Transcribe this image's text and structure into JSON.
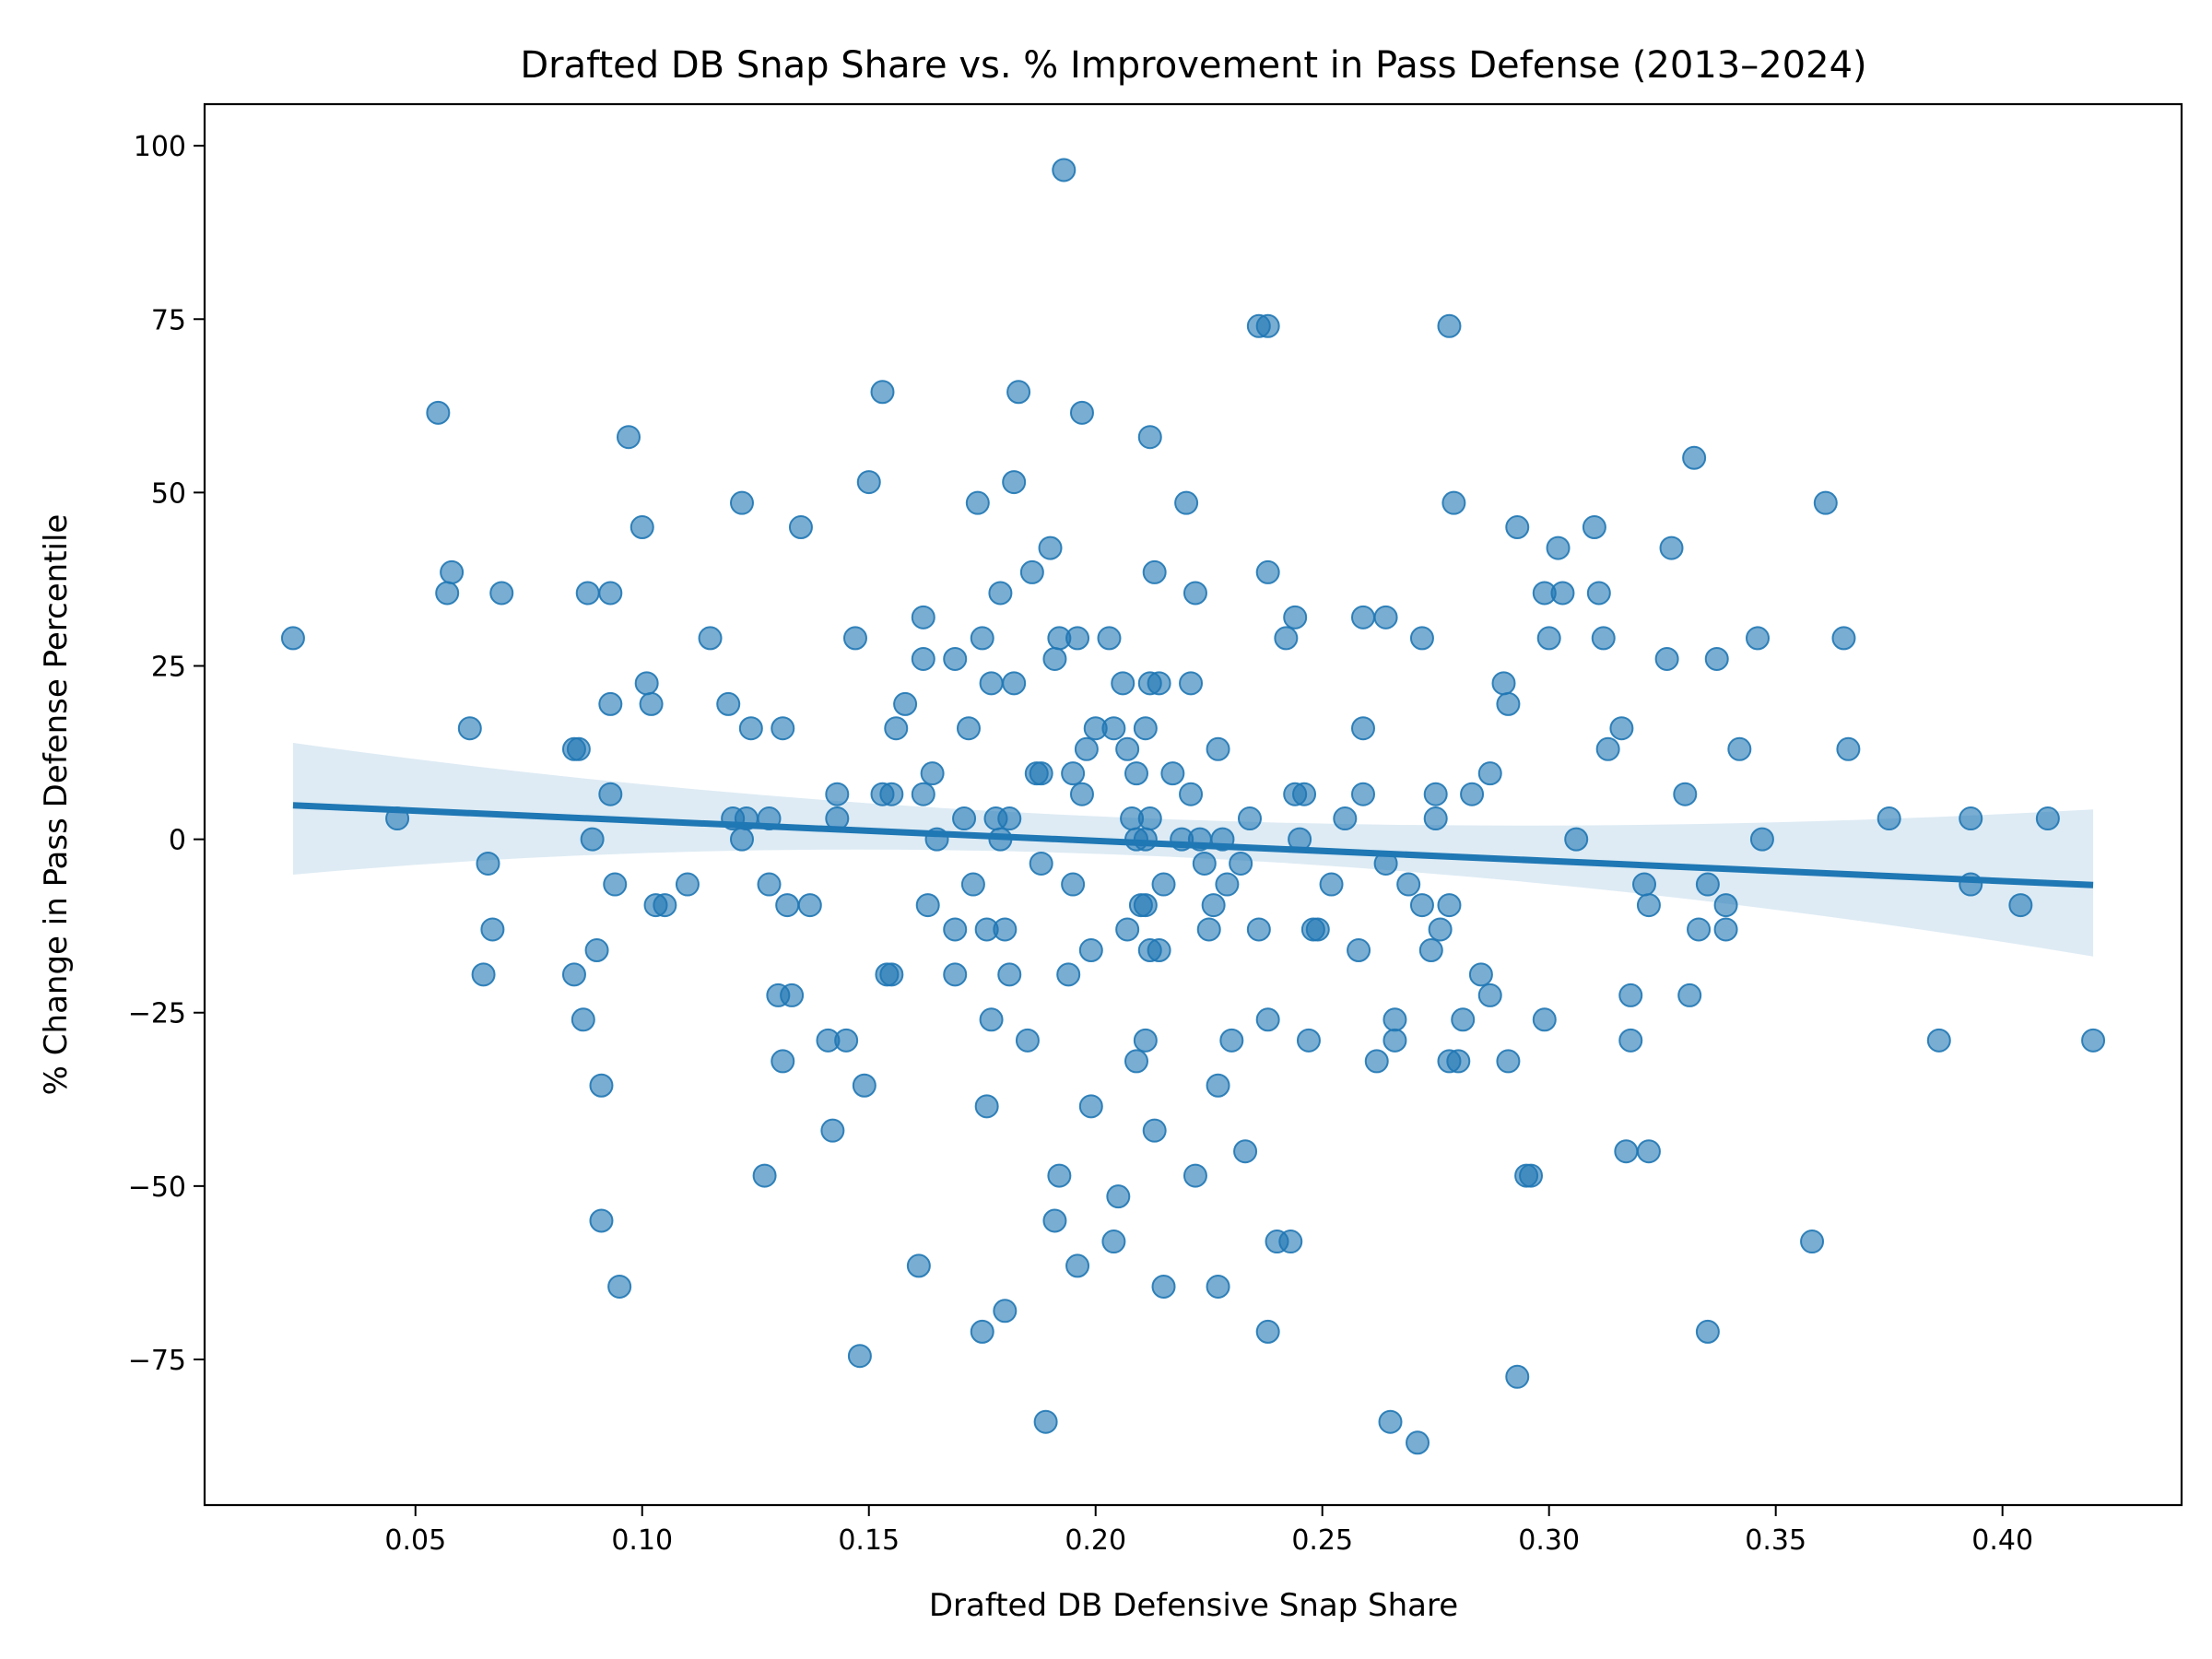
{
  "chart_data": {
    "type": "scatter",
    "title": "Drafted DB Snap Share vs. % Improvement in Pass Defense (2013–2024)",
    "xlabel": "Drafted DB Defensive Snap Share",
    "ylabel": "% Change in Pass Defense Percentile",
    "xlim": [
      0.0035,
      0.4395
    ],
    "ylim": [
      -96,
      106
    ],
    "x_ticks": [
      0.05,
      0.1,
      0.15,
      0.2,
      0.25,
      0.3,
      0.35,
      0.4
    ],
    "x_tick_labels": [
      "0.05",
      "0.10",
      "0.15",
      "0.20",
      "0.25",
      "0.30",
      "0.35",
      "0.40"
    ],
    "y_ticks": [
      100,
      75,
      50,
      25,
      0,
      -25,
      -50,
      -75
    ],
    "y_tick_labels": [
      "100",
      "75",
      "50",
      "25",
      "0",
      "−25",
      "−50",
      "−75"
    ],
    "grid": false,
    "colors": {
      "points": "#1f77b4",
      "line": "#1f77b4",
      "band": "#1f77b4"
    },
    "regression": {
      "x": [
        0.023,
        0.42
      ],
      "y": [
        4.9,
        -6.6
      ],
      "ci_upper": [
        13.9,
        4.3
      ],
      "ci_lower": [
        -5.1,
        -16.9
      ],
      "ci_mid_x": 0.21,
      "ci_mid_upper": 2.9,
      "ci_mid_lower": -2.5
    },
    "points": [
      [
        0.023,
        29
      ],
      [
        0.046,
        3
      ],
      [
        0.055,
        61.5
      ],
      [
        0.057,
        35.5
      ],
      [
        0.058,
        38.5
      ],
      [
        0.062,
        16
      ],
      [
        0.065,
        -19.5
      ],
      [
        0.066,
        -3.5
      ],
      [
        0.067,
        -13
      ],
      [
        0.069,
        35.5
      ],
      [
        0.085,
        13
      ],
      [
        0.085,
        -19.5
      ],
      [
        0.086,
        13
      ],
      [
        0.087,
        -26
      ],
      [
        0.088,
        35.5
      ],
      [
        0.089,
        0
      ],
      [
        0.09,
        -16
      ],
      [
        0.091,
        -35.5
      ],
      [
        0.091,
        -55
      ],
      [
        0.093,
        35.5
      ],
      [
        0.093,
        19.5
      ],
      [
        0.093,
        6.5
      ],
      [
        0.094,
        -6.5
      ],
      [
        0.095,
        -64.5
      ],
      [
        0.097,
        58
      ],
      [
        0.1,
        45
      ],
      [
        0.101,
        22.5
      ],
      [
        0.102,
        19.5
      ],
      [
        0.103,
        -9.5
      ],
      [
        0.105,
        -9.5
      ],
      [
        0.11,
        -6.5
      ],
      [
        0.115,
        29
      ],
      [
        0.119,
        19.5
      ],
      [
        0.12,
        3
      ],
      [
        0.122,
        0
      ],
      [
        0.122,
        48.5
      ],
      [
        0.123,
        3
      ],
      [
        0.124,
        16
      ],
      [
        0.127,
        -48.5
      ],
      [
        0.128,
        3
      ],
      [
        0.128,
        -6.5
      ],
      [
        0.13,
        -22.5
      ],
      [
        0.131,
        -32
      ],
      [
        0.131,
        16
      ],
      [
        0.132,
        -9.5
      ],
      [
        0.133,
        -22.5
      ],
      [
        0.135,
        45
      ],
      [
        0.137,
        -9.5
      ],
      [
        0.141,
        -29
      ],
      [
        0.142,
        -42
      ],
      [
        0.143,
        6.5
      ],
      [
        0.143,
        3
      ],
      [
        0.145,
        -29
      ],
      [
        0.147,
        29
      ],
      [
        0.148,
        -74.5
      ],
      [
        0.149,
        -35.5
      ],
      [
        0.15,
        51.5
      ],
      [
        0.153,
        64.5
      ],
      [
        0.153,
        6.5
      ],
      [
        0.154,
        -19.5
      ],
      [
        0.155,
        6.5
      ],
      [
        0.155,
        -19.5
      ],
      [
        0.156,
        16
      ],
      [
        0.158,
        19.5
      ],
      [
        0.161,
        -61.5
      ],
      [
        0.162,
        32
      ],
      [
        0.162,
        26
      ],
      [
        0.162,
        6.5
      ],
      [
        0.163,
        -9.5
      ],
      [
        0.164,
        9.5
      ],
      [
        0.165,
        0
      ],
      [
        0.169,
        26
      ],
      [
        0.169,
        -13
      ],
      [
        0.169,
        -19.5
      ],
      [
        0.171,
        3
      ],
      [
        0.172,
        16
      ],
      [
        0.173,
        -6.5
      ],
      [
        0.174,
        48.5
      ],
      [
        0.175,
        29
      ],
      [
        0.175,
        -71
      ],
      [
        0.176,
        -38.5
      ],
      [
        0.176,
        -13
      ],
      [
        0.177,
        -26
      ],
      [
        0.177,
        22.5
      ],
      [
        0.178,
        3
      ],
      [
        0.179,
        0
      ],
      [
        0.179,
        35.5
      ],
      [
        0.18,
        -13
      ],
      [
        0.18,
        -68
      ],
      [
        0.181,
        3
      ],
      [
        0.181,
        -19.5
      ],
      [
        0.182,
        51.5
      ],
      [
        0.182,
        22.5
      ],
      [
        0.183,
        64.5
      ],
      [
        0.185,
        -29
      ],
      [
        0.186,
        38.5
      ],
      [
        0.187,
        9.5
      ],
      [
        0.188,
        9.5
      ],
      [
        0.188,
        -3.5
      ],
      [
        0.189,
        -84
      ],
      [
        0.19,
        42
      ],
      [
        0.191,
        26
      ],
      [
        0.191,
        -55
      ],
      [
        0.192,
        29
      ],
      [
        0.192,
        -48.5
      ],
      [
        0.193,
        96.5
      ],
      [
        0.194,
        -19.5
      ],
      [
        0.195,
        -6.5
      ],
      [
        0.195,
        9.5
      ],
      [
        0.196,
        29
      ],
      [
        0.196,
        -61.5
      ],
      [
        0.197,
        6.5
      ],
      [
        0.197,
        61.5
      ],
      [
        0.198,
        13
      ],
      [
        0.199,
        -16
      ],
      [
        0.199,
        -38.5
      ],
      [
        0.2,
        16
      ],
      [
        0.203,
        29
      ],
      [
        0.204,
        16
      ],
      [
        0.204,
        -58
      ],
      [
        0.205,
        -51.5
      ],
      [
        0.206,
        22.5
      ],
      [
        0.207,
        13
      ],
      [
        0.207,
        -13
      ],
      [
        0.208,
        3
      ],
      [
        0.209,
        -32
      ],
      [
        0.209,
        9.5
      ],
      [
        0.209,
        0
      ],
      [
        0.21,
        -9.5
      ],
      [
        0.211,
        0
      ],
      [
        0.211,
        -9.5
      ],
      [
        0.211,
        -29
      ],
      [
        0.211,
        16
      ],
      [
        0.212,
        3
      ],
      [
        0.212,
        -16
      ],
      [
        0.212,
        22.5
      ],
      [
        0.212,
        58
      ],
      [
        0.213,
        38.5
      ],
      [
        0.213,
        -42
      ],
      [
        0.214,
        22.5
      ],
      [
        0.214,
        -16
      ],
      [
        0.215,
        -6.5
      ],
      [
        0.215,
        -64.5
      ],
      [
        0.217,
        9.5
      ],
      [
        0.219,
        0
      ],
      [
        0.22,
        48.5
      ],
      [
        0.221,
        6.5
      ],
      [
        0.221,
        22.5
      ],
      [
        0.222,
        35.5
      ],
      [
        0.222,
        -48.5
      ],
      [
        0.223,
        0
      ],
      [
        0.224,
        -3.5
      ],
      [
        0.225,
        -13
      ],
      [
        0.226,
        -9.5
      ],
      [
        0.227,
        13
      ],
      [
        0.227,
        -35.5
      ],
      [
        0.227,
        -64.5
      ],
      [
        0.228,
        0
      ],
      [
        0.229,
        -6.5
      ],
      [
        0.23,
        -29
      ],
      [
        0.232,
        -3.5
      ],
      [
        0.233,
        -45
      ],
      [
        0.234,
        3
      ],
      [
        0.236,
        -13
      ],
      [
        0.236,
        74
      ],
      [
        0.238,
        74
      ],
      [
        0.238,
        -26
      ],
      [
        0.238,
        38.5
      ],
      [
        0.238,
        -71
      ],
      [
        0.24,
        -58
      ],
      [
        0.242,
        29
      ],
      [
        0.243,
        -58
      ],
      [
        0.244,
        32
      ],
      [
        0.244,
        6.5
      ],
      [
        0.245,
        0
      ],
      [
        0.246,
        6.5
      ],
      [
        0.247,
        -29
      ],
      [
        0.248,
        -13
      ],
      [
        0.249,
        -13
      ],
      [
        0.252,
        -6.5
      ],
      [
        0.255,
        3
      ],
      [
        0.258,
        -16
      ],
      [
        0.259,
        6.5
      ],
      [
        0.259,
        16
      ],
      [
        0.259,
        32
      ],
      [
        0.262,
        -32
      ],
      [
        0.264,
        -3.5
      ],
      [
        0.264,
        32
      ],
      [
        0.265,
        -84
      ],
      [
        0.266,
        -29
      ],
      [
        0.266,
        -26
      ],
      [
        0.269,
        -6.5
      ],
      [
        0.271,
        -87
      ],
      [
        0.272,
        29
      ],
      [
        0.272,
        -9.5
      ],
      [
        0.274,
        -16
      ],
      [
        0.275,
        3
      ],
      [
        0.275,
        6.5
      ],
      [
        0.276,
        -13
      ],
      [
        0.278,
        74
      ],
      [
        0.278,
        -9.5
      ],
      [
        0.278,
        -32
      ],
      [
        0.279,
        48.5
      ],
      [
        0.28,
        -32
      ],
      [
        0.281,
        -26
      ],
      [
        0.283,
        6.5
      ],
      [
        0.285,
        -19.5
      ],
      [
        0.287,
        9.5
      ],
      [
        0.287,
        -22.5
      ],
      [
        0.29,
        22.5
      ],
      [
        0.291,
        19.5
      ],
      [
        0.291,
        -32
      ],
      [
        0.293,
        45
      ],
      [
        0.293,
        -77.5
      ],
      [
        0.295,
        -48.5
      ],
      [
        0.296,
        -48.5
      ],
      [
        0.299,
        -26
      ],
      [
        0.299,
        35.5
      ],
      [
        0.3,
        29
      ],
      [
        0.302,
        42
      ],
      [
        0.303,
        35.5
      ],
      [
        0.306,
        0
      ],
      [
        0.31,
        45
      ],
      [
        0.311,
        35.5
      ],
      [
        0.312,
        29
      ],
      [
        0.313,
        13
      ],
      [
        0.316,
        16
      ],
      [
        0.317,
        -45
      ],
      [
        0.318,
        -29
      ],
      [
        0.318,
        -22.5
      ],
      [
        0.321,
        -6.5
      ],
      [
        0.322,
        -45
      ],
      [
        0.322,
        -9.5
      ],
      [
        0.326,
        26
      ],
      [
        0.327,
        42
      ],
      [
        0.33,
        6.5
      ],
      [
        0.331,
        -22.5
      ],
      [
        0.332,
        55
      ],
      [
        0.333,
        -13
      ],
      [
        0.335,
        -6.5
      ],
      [
        0.335,
        -71
      ],
      [
        0.337,
        26
      ],
      [
        0.339,
        -9.5
      ],
      [
        0.339,
        -13
      ],
      [
        0.342,
        13
      ],
      [
        0.346,
        29
      ],
      [
        0.347,
        0
      ],
      [
        0.358,
        -58
      ],
      [
        0.361,
        48.5
      ],
      [
        0.365,
        29
      ],
      [
        0.366,
        13
      ],
      [
        0.375,
        3
      ],
      [
        0.386,
        -29
      ],
      [
        0.393,
        3
      ],
      [
        0.393,
        -6.5
      ],
      [
        0.404,
        -9.5
      ],
      [
        0.41,
        3
      ],
      [
        0.42,
        -29
      ]
    ]
  }
}
